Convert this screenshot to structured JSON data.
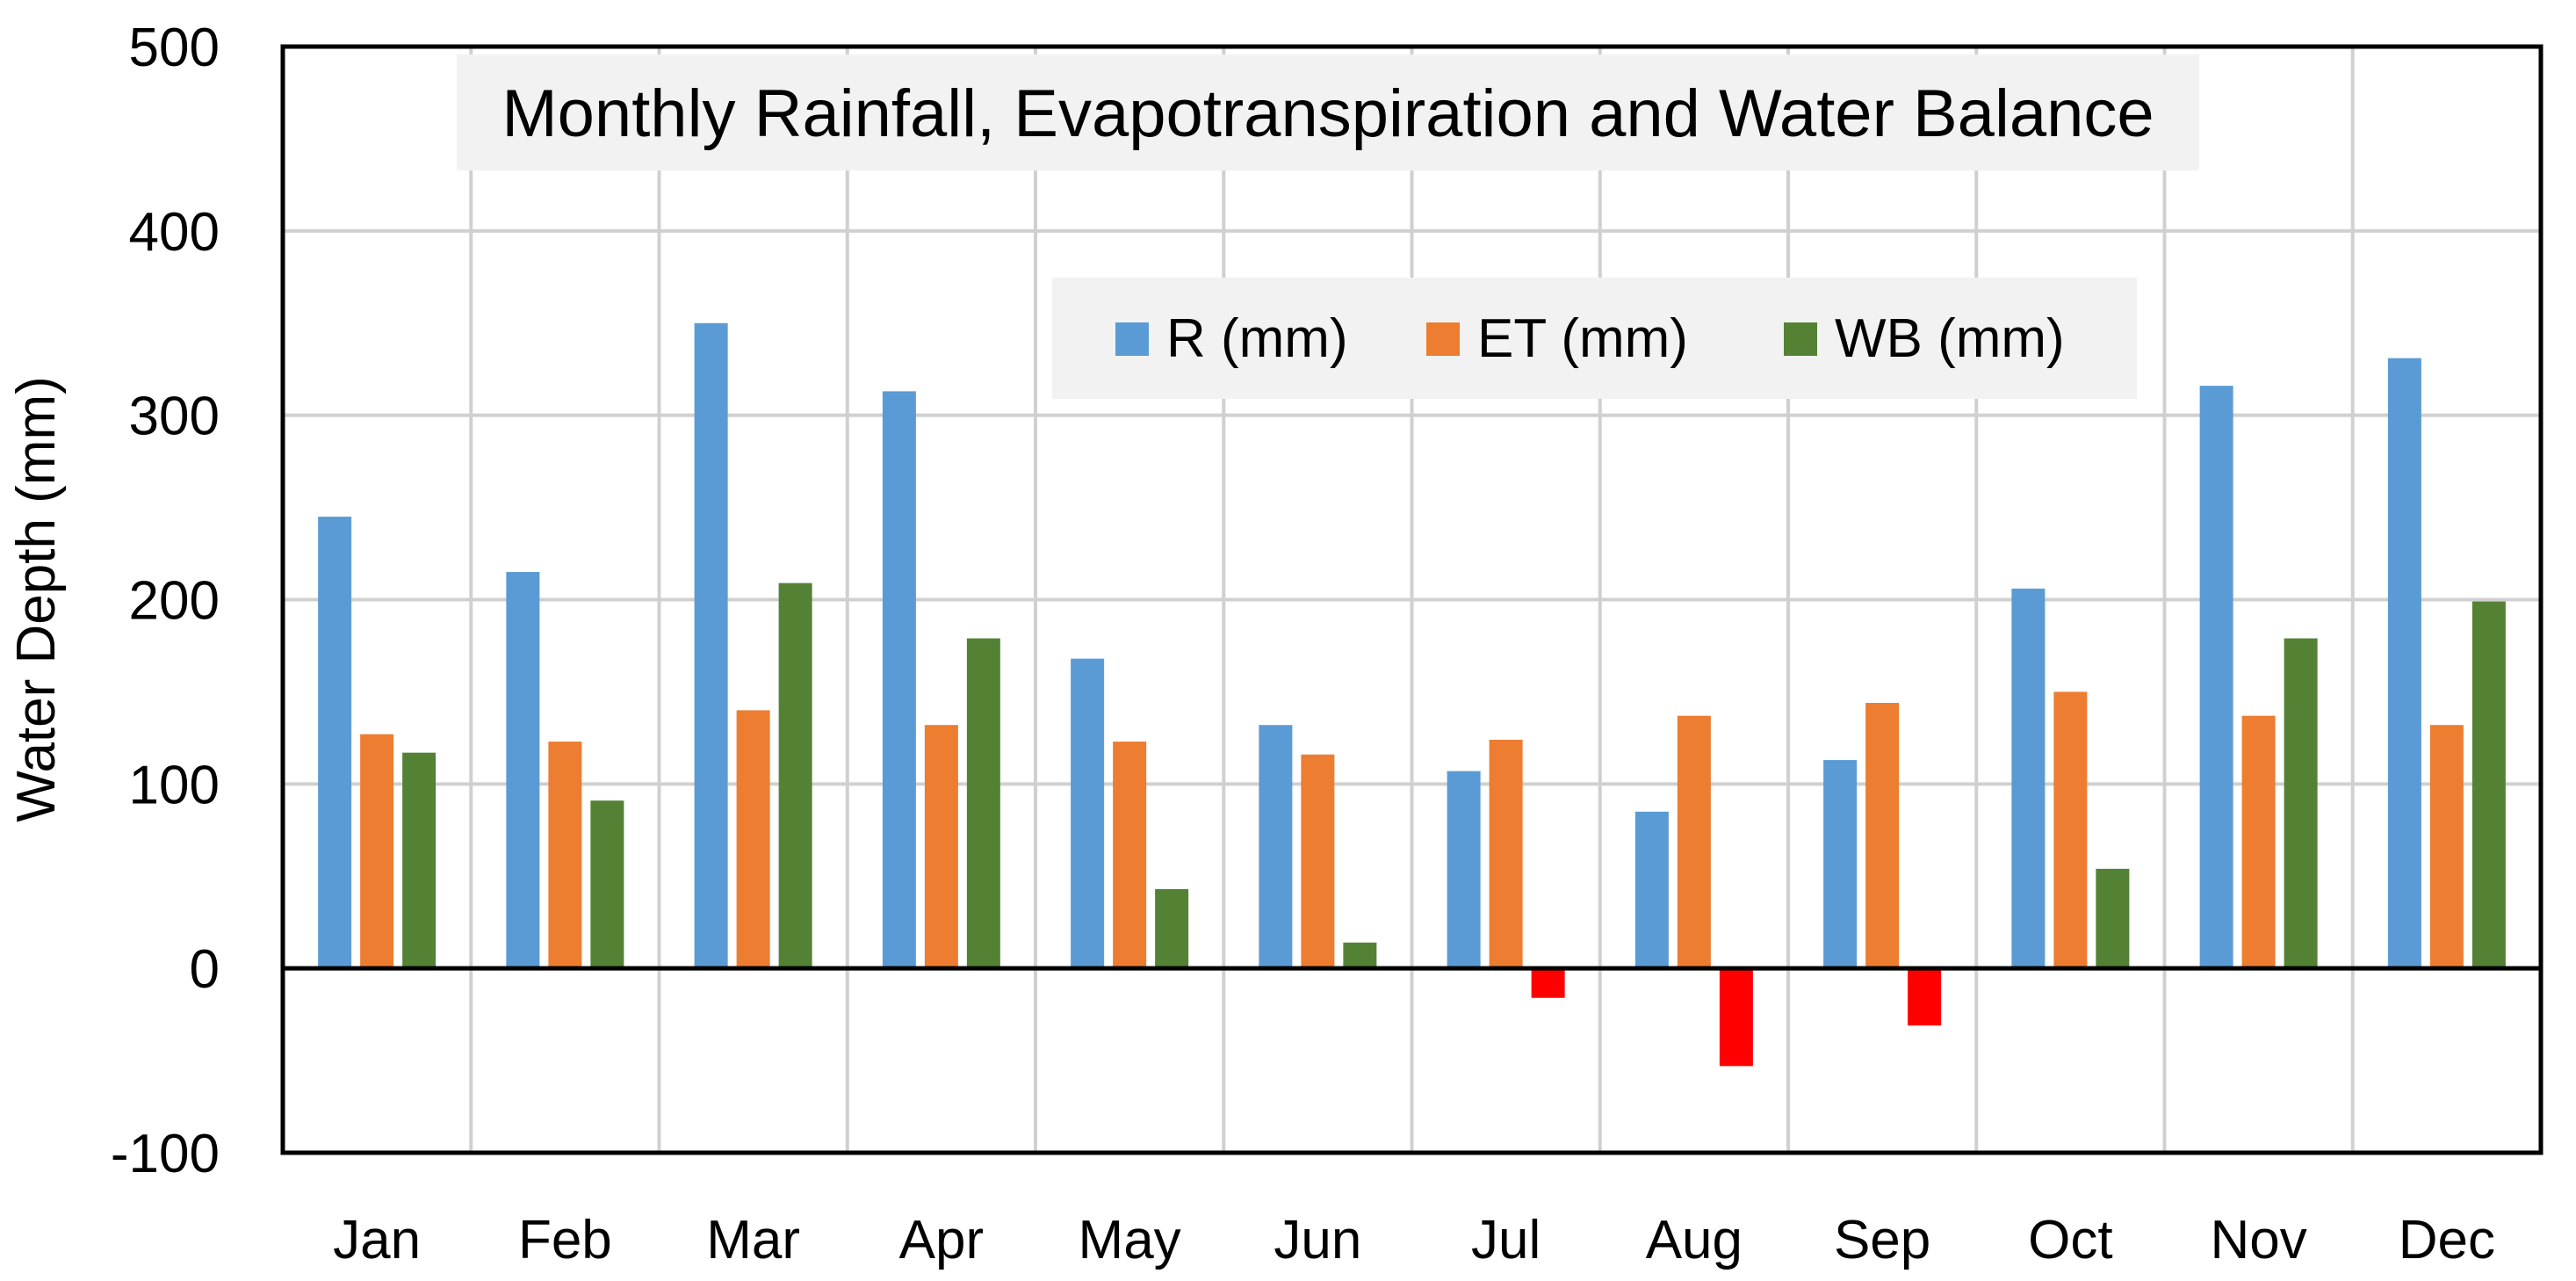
{
  "chart_data": {
    "type": "bar",
    "title": "Monthly Rainfall, Evapotranspiration and Water Balance",
    "xlabel": "",
    "ylabel": "Water Depth (mm)",
    "ylim": [
      -100,
      500
    ],
    "yticks": [
      500,
      400,
      300,
      200,
      100,
      0,
      -100
    ],
    "grid": true,
    "legend_position": "top-center",
    "categories": [
      "Jan",
      "Feb",
      "Mar",
      "Apr",
      "May",
      "Jun",
      "Jul",
      "Aug",
      "Sep",
      "Oct",
      "Nov",
      "Dec"
    ],
    "series": [
      {
        "name": "R (mm)",
        "color": "#5B9BD5",
        "values": [
          245,
          215,
          350,
          313,
          168,
          132,
          107,
          85,
          113,
          206,
          316,
          331
        ]
      },
      {
        "name": "ET (mm)",
        "color": "#ED7D31",
        "values": [
          127,
          123,
          140,
          132,
          123,
          116,
          124,
          137,
          144,
          150,
          137,
          132
        ]
      },
      {
        "name": "WB (mm)",
        "color": "#548235",
        "negative_color": "#FF0000",
        "values": [
          117,
          91,
          209,
          179,
          43,
          14,
          -16,
          -53,
          -31,
          54,
          179,
          199
        ]
      }
    ]
  }
}
